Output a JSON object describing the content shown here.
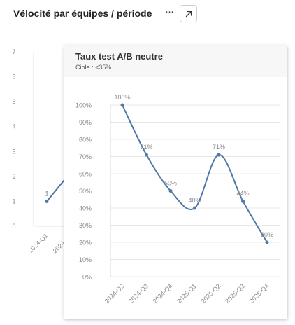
{
  "background_card": {
    "title": "Vélocité par équipes / période",
    "more_label": "···",
    "chart_data": {
      "type": "line",
      "y_ticks": [
        "0",
        "1",
        "2",
        "3",
        "4",
        "5",
        "6",
        "7"
      ],
      "ylim": [
        0,
        7
      ],
      "categories": [
        "2024-Q1",
        "2024-Q2"
      ],
      "values": [
        1,
        2.2
      ],
      "data_labels": [
        "1",
        ""
      ]
    }
  },
  "tooltip_card": {
    "title": "Taux test A/B neutre",
    "subtitle": "Cible : <35%",
    "chart_data": {
      "type": "line",
      "curve": "smooth",
      "color": "#4e79a7",
      "y_ticks": [
        "0%",
        "10%",
        "20%",
        "30%",
        "40%",
        "50%",
        "60%",
        "70%",
        "80%",
        "90%",
        "100%"
      ],
      "ylim": [
        0,
        100
      ],
      "categories": [
        "2024-Q2",
        "2024-Q3",
        "2024-Q4",
        "2025-Q1",
        "2025-Q2",
        "2025-Q3",
        "2025-Q4"
      ],
      "values": [
        100,
        71,
        50,
        40,
        71,
        44,
        20
      ],
      "data_labels": [
        "100%",
        "71%",
        "50%",
        "40%",
        "71%",
        "44%",
        "20%"
      ]
    }
  }
}
